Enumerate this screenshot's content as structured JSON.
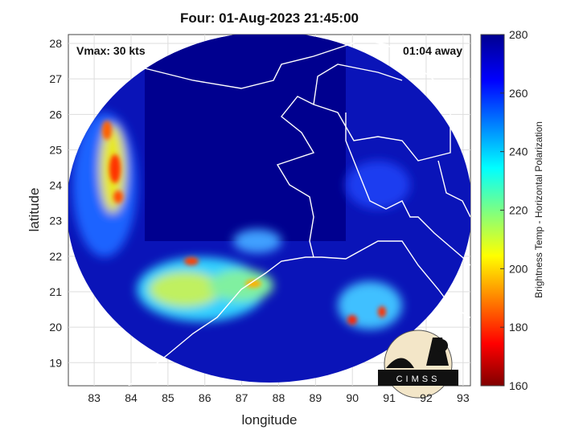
{
  "map": {
    "title": "Four: 01-Aug-2023 21:45:00",
    "xlabel": "longitude",
    "ylabel": "latitude",
    "xlim": [
      82.3,
      93.2
    ],
    "ylim": [
      18.35,
      28.25
    ],
    "xticks": [
      83,
      84,
      85,
      86,
      87,
      88,
      89,
      90,
      91,
      92,
      93
    ],
    "yticks": [
      19,
      20,
      21,
      22,
      23,
      24,
      25,
      26,
      27,
      28
    ],
    "annotations": [
      "Vmax: 30 kts",
      "01:04 away"
    ],
    "logo": "CIMSS",
    "colorbar": {
      "label": "Brightness Temp - Horizontal Polarization",
      "lim": [
        160,
        280
      ],
      "ticks": [
        160,
        180,
        200,
        220,
        240,
        260,
        280
      ]
    }
  }
}
